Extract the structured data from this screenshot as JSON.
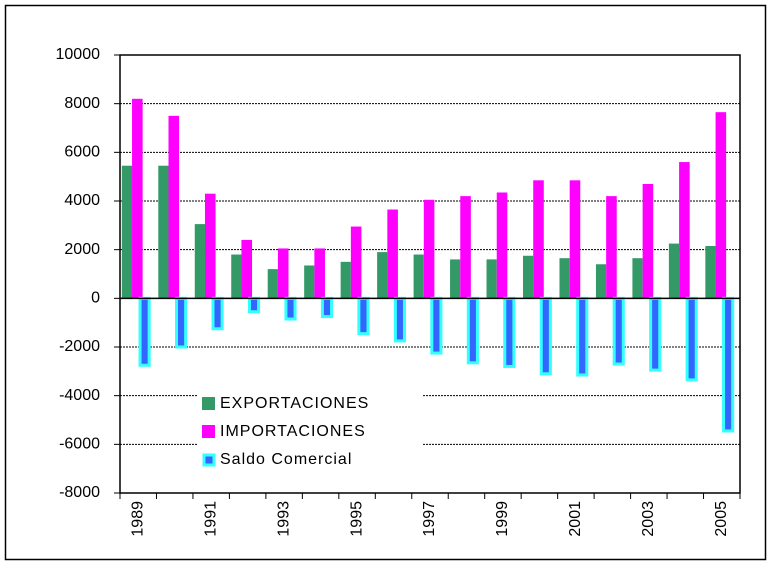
{
  "chart_data": {
    "type": "bar",
    "categories": [
      "1989",
      null,
      "1991",
      null,
      "1993",
      null,
      "1995",
      null,
      "1997",
      null,
      "1999",
      null,
      "2001",
      null,
      "2003",
      null,
      "2005"
    ],
    "series": [
      {
        "name": "EXPORTACIONES",
        "color": "#339966",
        "values": [
          5450,
          5450,
          3050,
          1800,
          1200,
          1350,
          1500,
          1900,
          1800,
          1600,
          1600,
          1750,
          1650,
          1400,
          1650,
          2250,
          2150
        ]
      },
      {
        "name": "IMPORTACIONES",
        "color": "#ff00ff",
        "values": [
          8200,
          7500,
          4300,
          2400,
          2050,
          2050,
          2950,
          3650,
          4050,
          4200,
          4350,
          4850,
          4850,
          4200,
          4700,
          5600,
          7650
        ]
      },
      {
        "name": "Saldo Comercial",
        "color": "#3366ff",
        "values": [
          -2750,
          -2000,
          -1250,
          -550,
          -850,
          -750,
          -1450,
          -1750,
          -2250,
          -2650,
          -2800,
          -3100,
          -3150,
          -2700,
          -2950,
          -3350,
          -5450
        ]
      }
    ],
    "ylim": [
      -8000,
      10000
    ],
    "yticks": [
      -8000,
      -6000,
      -4000,
      -2000,
      0,
      2000,
      4000,
      6000,
      8000,
      10000
    ],
    "grid": true,
    "legend": "lower left"
  }
}
